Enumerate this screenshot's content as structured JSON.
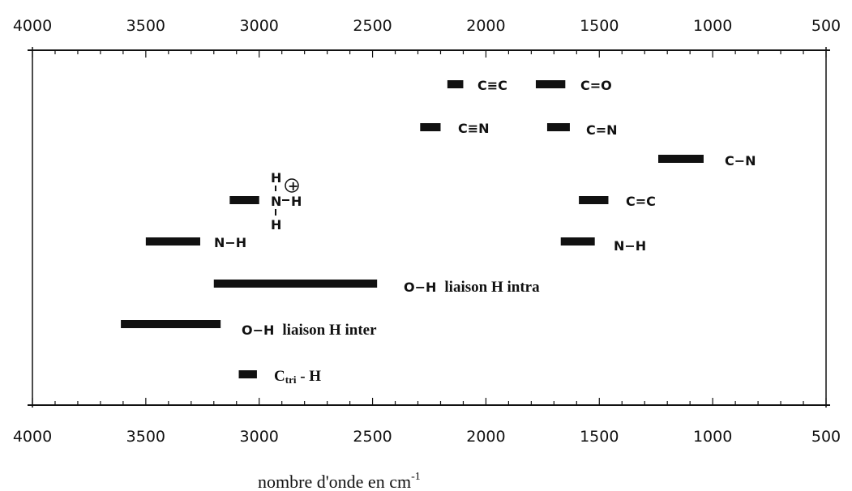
{
  "chart_data": {
    "type": "bar",
    "orientation": "horizontal-ranges",
    "xlabel": "nombre d'onde en cm",
    "xlabel_superscript": "-1",
    "xlim": [
      4000,
      500
    ],
    "x_reversed": true,
    "ticks": [
      "4000",
      "3500",
      "3000",
      "2500",
      "2000",
      "1500",
      "1000",
      "500"
    ],
    "tick_values": [
      4000,
      3500,
      3000,
      2500,
      2000,
      1500,
      1000,
      500
    ],
    "minor_tick_step": 100,
    "grid": false,
    "bands": [
      {
        "label": "C≡C",
        "x_start": 2170,
        "x_end": 2100,
        "row": 1
      },
      {
        "label": "C=O",
        "x_start": 1780,
        "x_end": 1650,
        "row": 1
      },
      {
        "label": "C≡N",
        "x_start": 2290,
        "x_end": 2200,
        "row": 2
      },
      {
        "label": "C=N",
        "x_start": 1730,
        "x_end": 1630,
        "row": 2
      },
      {
        "label": "C−N",
        "x_start": 1240,
        "x_end": 1040,
        "row": 3
      },
      {
        "label": "NH3+",
        "x_start": 3130,
        "x_end": 3000,
        "row": 4
      },
      {
        "label": "C=C",
        "x_start": 1590,
        "x_end": 1460,
        "row": 4
      },
      {
        "label": "N−H",
        "x_start": 3500,
        "x_end": 3260,
        "row": 5
      },
      {
        "label": "N−H",
        "x_start": 1670,
        "x_end": 1520,
        "row": 5
      },
      {
        "label": "O−H liaison H intra",
        "x_start": 3200,
        "x_end": 2480,
        "row": 6
      },
      {
        "label": "O−H liaison H inter",
        "x_start": 3610,
        "x_end": 3170,
        "row": 7
      },
      {
        "label": "Ctri - H",
        "x_start": 3090,
        "x_end": 3010,
        "row": 8
      }
    ]
  },
  "labels": {
    "cc_triple": "C≡C",
    "co_double": "C=O",
    "cn_triple": "C≡N",
    "cn_double": "C=N",
    "cn_single": "C−N",
    "cc_double": "C=C",
    "nh_a": "N−H",
    "nh_b": "N−H",
    "oh_intra_prefix": "O−H",
    "oh_intra_suffix": "liaison H intra",
    "oh_inter_prefix": "O−H",
    "oh_inter_suffix": "liaison H inter",
    "ctri_c": "C",
    "ctri_sub": "tri",
    "ctri_h": " - H",
    "ammonium_h_top": "H",
    "ammonium_h_right": "H",
    "ammonium_h_bottom": "H",
    "ammonium_n": "N",
    "ammonium_plus": "+"
  }
}
